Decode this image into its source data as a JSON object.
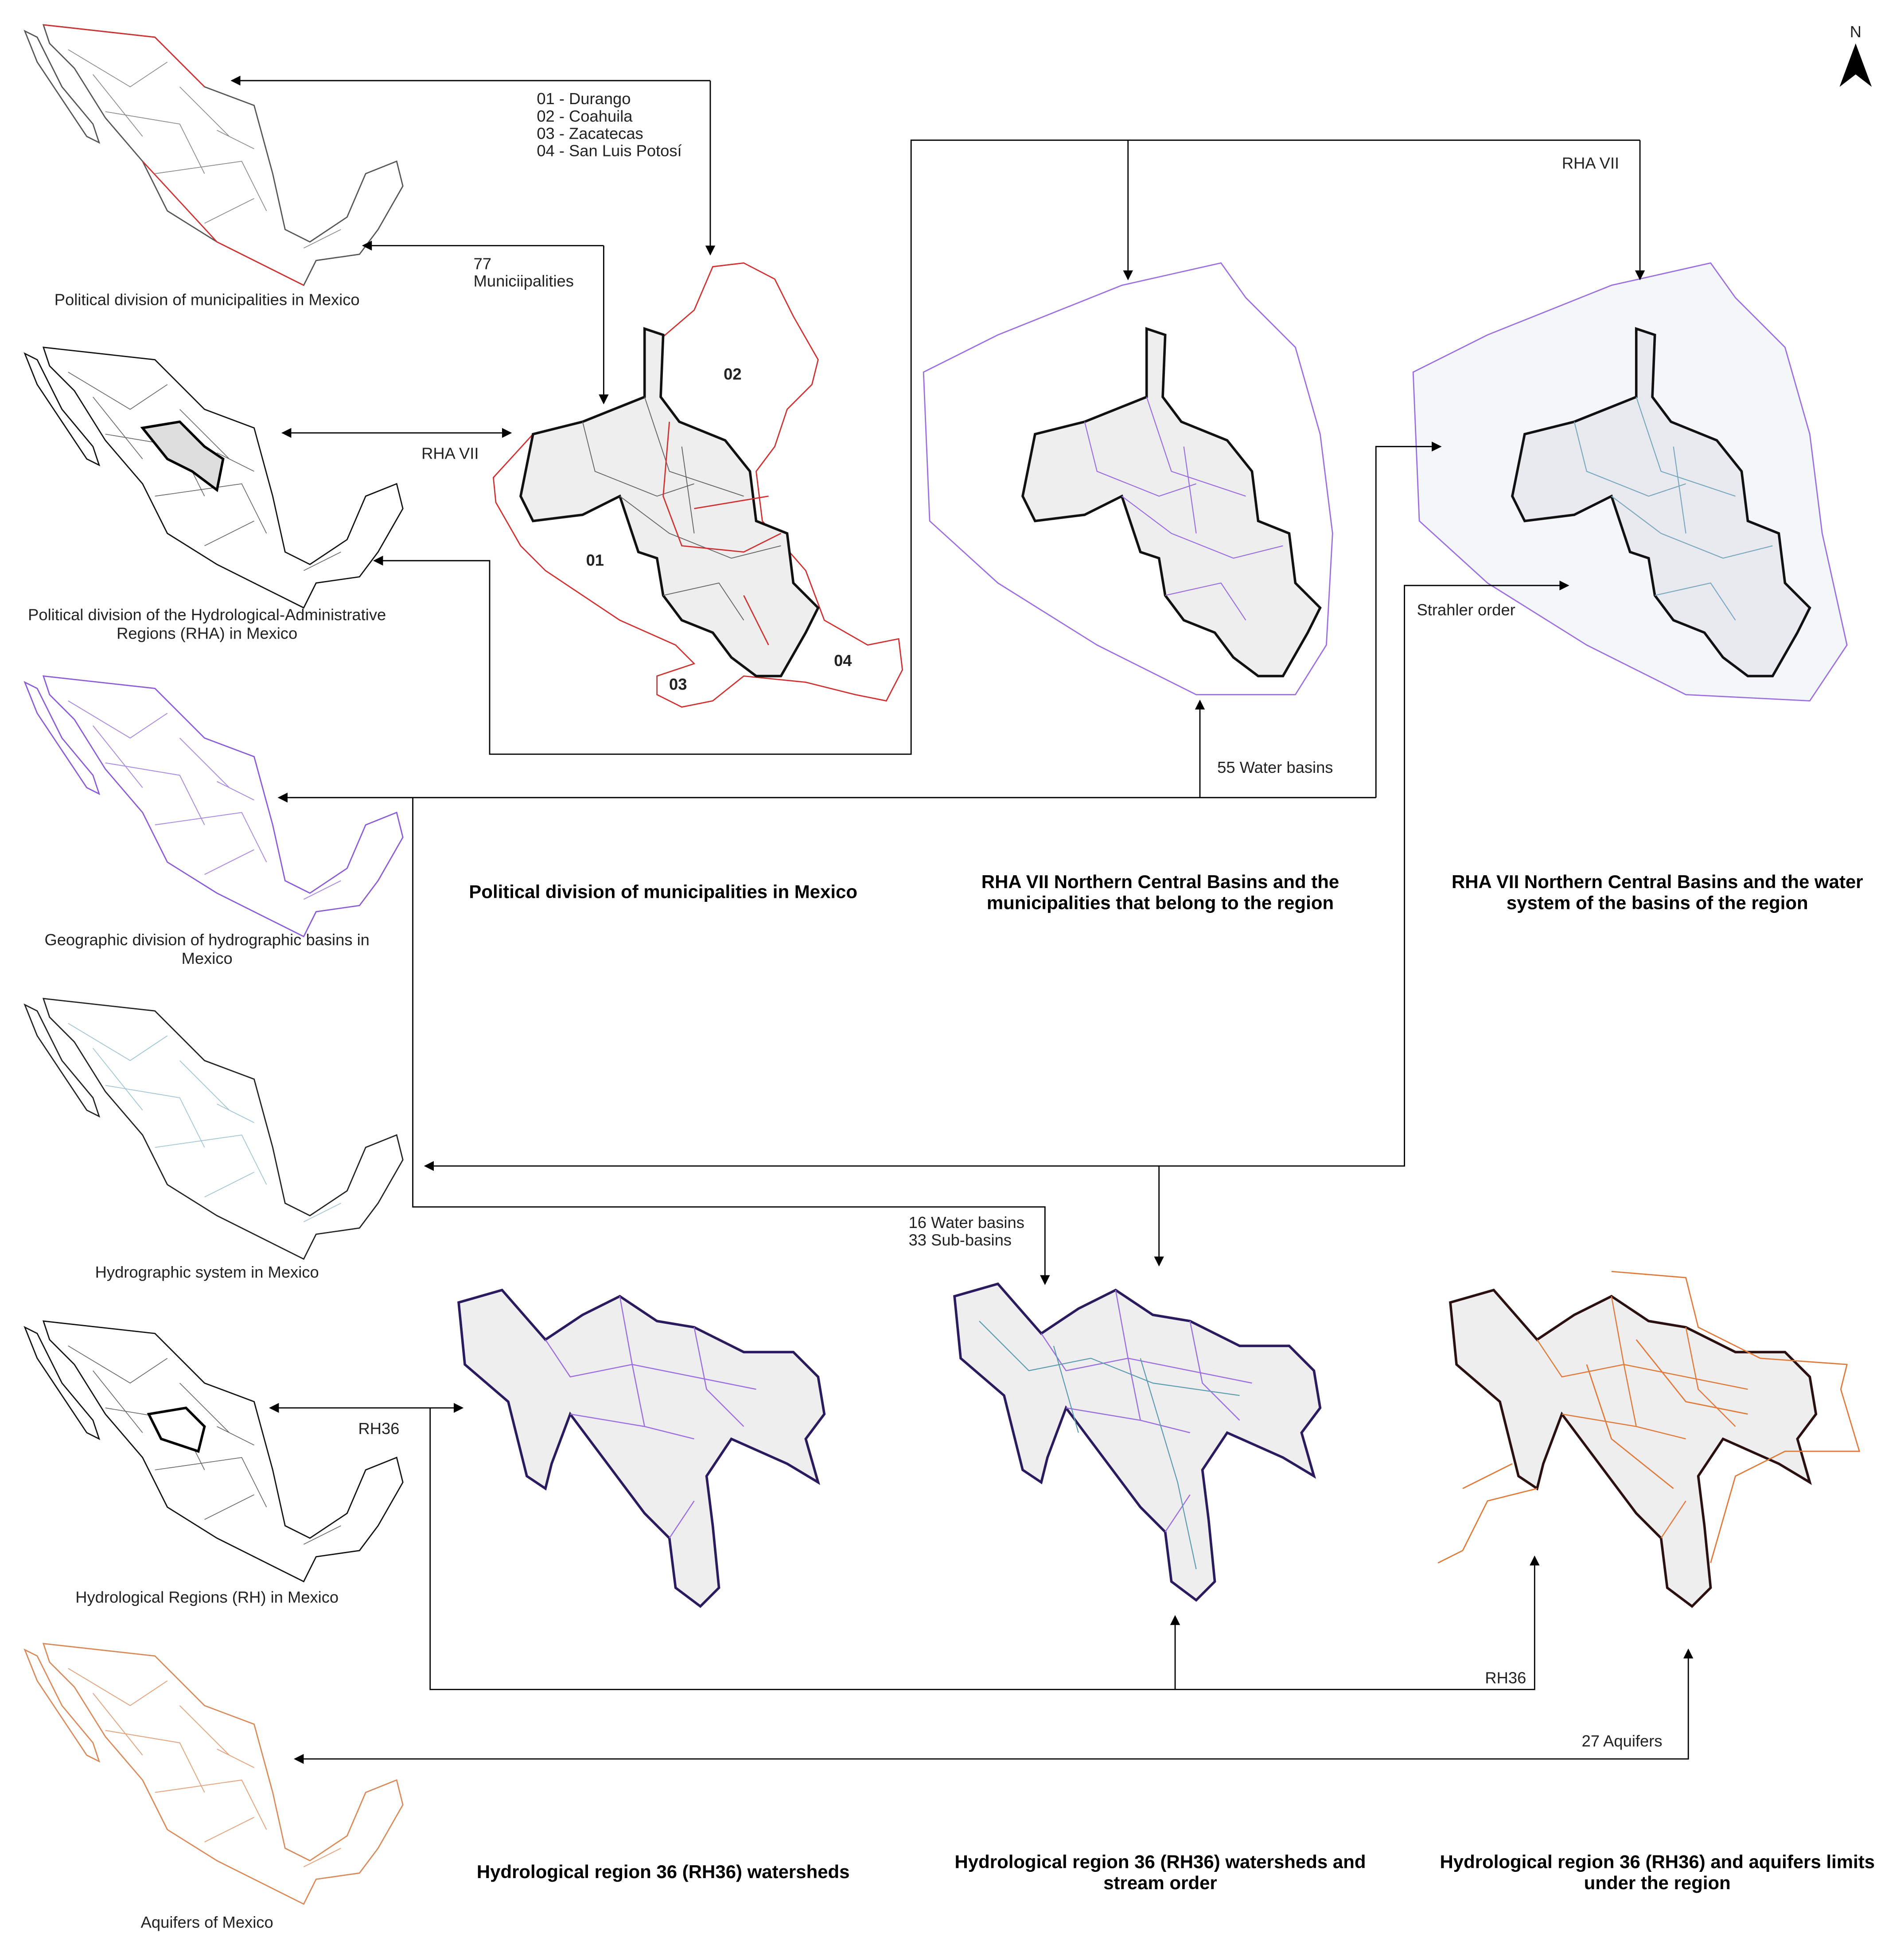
{
  "north": "N",
  "legend_states": [
    "01 - Durango",
    "02 - Coahuila",
    "03 - Zacatecas",
    "04 - San Luis Potosí"
  ],
  "state_labels": [
    "01",
    "02",
    "03",
    "04"
  ],
  "annotations": {
    "municipalities_count": "77",
    "municipalities": "Municiipalities",
    "rha_vii_left": "RHA VII",
    "rha_vii_top": "RHA VII",
    "water_basins_55": "55 Water basins",
    "strahler": "Strahler order",
    "water_basins_16": "16 Water basins",
    "sub_basins_33": "33 Sub-basins",
    "rh36_left": "RH36",
    "rh36_bottom": "RH36",
    "aquifers_27": "27 Aquifers"
  },
  "mexico_maps": [
    {
      "caption": [
        "Political division of municipalities in Mexico"
      ]
    },
    {
      "caption": [
        "Political division of the Hydrological-Administrative",
        "Regions (RHA) in Mexico"
      ]
    },
    {
      "caption": [
        "Geographic division of hydrographic basins in",
        "Mexico"
      ]
    },
    {
      "caption": [
        "Hydrographic system in Mexico"
      ]
    },
    {
      "caption": [
        "Hydrological Regions (RH) in Mexico"
      ]
    },
    {
      "caption": [
        "Aquifers of Mexico"
      ]
    }
  ],
  "panels": [
    {
      "title": [
        "Political division of municipalities in Mexico"
      ]
    },
    {
      "title": [
        "RHA VII Northern Central Basins and the",
        "municipalities that belong to the region"
      ]
    },
    {
      "title": [
        "RHA VII Northern Central Basins and the water",
        "system of the basins of the region"
      ]
    },
    {
      "title": [
        "Hydrological region 36 (RH36) watersheds"
      ]
    },
    {
      "title": [
        "Hydrological region 36 (RH36) watersheds and",
        "stream order"
      ]
    },
    {
      "title": [
        "Hydrological region 36 (RH36) and aquifers limits",
        "under the region"
      ]
    }
  ]
}
